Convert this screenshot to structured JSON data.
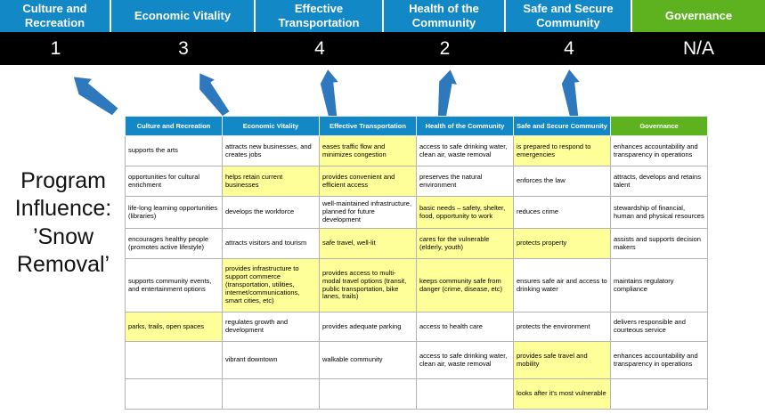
{
  "title": "Program Influence: ’Snow Removal’",
  "colors": {
    "header_blue": "#1288c6",
    "header_green": "#5eb220",
    "score_bg": "#000000",
    "score_text": "#ffffff",
    "highlight_yellow": "#ffff99",
    "arrow_blue": "#2e78bd",
    "grid_border": "#b3b3b3"
  },
  "scoreboard": [
    {
      "label": "Culture and Recreation",
      "score": "1",
      "theme": "blue"
    },
    {
      "label": "Economic Vitality",
      "score": "3",
      "theme": "blue"
    },
    {
      "label": "Effective Transportation",
      "score": "4",
      "theme": "blue"
    },
    {
      "label": "Health of the Community",
      "score": "2",
      "theme": "blue"
    },
    {
      "label": "Safe and Secure Community",
      "score": "4",
      "theme": "blue"
    },
    {
      "label": "Governance",
      "score": "N/A",
      "theme": "green"
    }
  ],
  "matrix": {
    "headers": [
      {
        "label": "Culture and Recreation",
        "theme": "blue"
      },
      {
        "label": "Economic Vitality",
        "theme": "blue"
      },
      {
        "label": "Effective Transportation",
        "theme": "blue"
      },
      {
        "label": "Health of the Community",
        "theme": "blue"
      },
      {
        "label": "Safe and Secure Community",
        "theme": "blue"
      },
      {
        "label": "Governance",
        "theme": "green"
      }
    ],
    "rows": [
      [
        {
          "text": "supports the arts",
          "highlight": false
        },
        {
          "text": "attracts new businesses, and creates jobs",
          "highlight": false
        },
        {
          "text": "eases traffic flow and minimizes congestion",
          "highlight": true
        },
        {
          "text": "access to safe drinking water, clean air, waste removal",
          "highlight": false
        },
        {
          "text": "is prepared to respond to emergencies",
          "highlight": true
        },
        {
          "text": "enhances accountability and transparency in operations",
          "highlight": false
        }
      ],
      [
        {
          "text": "opportunities for cultural enrichment",
          "highlight": false
        },
        {
          "text": "helps retain current businesses",
          "highlight": true
        },
        {
          "text": "provides convenient and efficient access",
          "highlight": true
        },
        {
          "text": "preserves the natural environment",
          "highlight": false
        },
        {
          "text": "enforces the law",
          "highlight": false
        },
        {
          "text": "attracts, develops and retains talent",
          "highlight": false
        }
      ],
      [
        {
          "text": "life-long learning opportunities (libraries)",
          "highlight": false
        },
        {
          "text": "develops the workforce",
          "highlight": false
        },
        {
          "text": "well-maintained infrastructure, planned for future development",
          "highlight": false
        },
        {
          "text": "basic needs – safety, shelter, food, opportunity to work",
          "highlight": true
        },
        {
          "text": "reduces crime",
          "highlight": false
        },
        {
          "text": "stewardship of financial, human and physical resources",
          "highlight": false
        }
      ],
      [
        {
          "text": "encourages healthy people (promotes active lifestyle)",
          "highlight": false
        },
        {
          "text": "attracts visitors and tourism",
          "highlight": false
        },
        {
          "text": "safe travel, well-lit",
          "highlight": true
        },
        {
          "text": "cares for the vulnerable (elderly, youth)",
          "highlight": true
        },
        {
          "text": "protects property",
          "highlight": true
        },
        {
          "text": "assists and supports decision makers",
          "highlight": false
        }
      ],
      [
        {
          "text": "supports community events, and entertainment options",
          "highlight": false
        },
        {
          "text": "provides infrastructure to support commerce (transportation, utilities, internet/communications, smart cities, etc)",
          "highlight": true
        },
        {
          "text": "provides access to multi-modal travel options (transit, public transportation, bike lanes, trails)",
          "highlight": true
        },
        {
          "text": "keeps community safe from danger (crime, disease, etc)",
          "highlight": true
        },
        {
          "text": "ensures safe air and access to drinking water",
          "highlight": false
        },
        {
          "text": "maintains regulatory compliance",
          "highlight": false
        }
      ],
      [
        {
          "text": "parks, trails, open spaces",
          "highlight": true
        },
        {
          "text": "regulates growth and development",
          "highlight": false
        },
        {
          "text": "provides adequate parking",
          "highlight": false
        },
        {
          "text": "access to health care",
          "highlight": false
        },
        {
          "text": "protects the environment",
          "highlight": false
        },
        {
          "text": "delivers responsible and courteous service",
          "highlight": false
        }
      ],
      [
        {
          "text": "",
          "highlight": false
        },
        {
          "text": "vibrant downtown",
          "highlight": false
        },
        {
          "text": "walkable community",
          "highlight": false
        },
        {
          "text": "access to safe drinking water, clean air, waste removal",
          "highlight": false
        },
        {
          "text": "provides safe travel and mobility",
          "highlight": true
        },
        {
          "text": "enhances accountability and transparency in operations",
          "highlight": false
        }
      ],
      [
        {
          "text": "",
          "highlight": false
        },
        {
          "text": "",
          "highlight": false
        },
        {
          "text": "",
          "highlight": false
        },
        {
          "text": "",
          "highlight": false
        },
        {
          "text": "looks after it's most vulnerable",
          "highlight": true
        },
        {
          "text": "",
          "highlight": false
        }
      ]
    ]
  }
}
